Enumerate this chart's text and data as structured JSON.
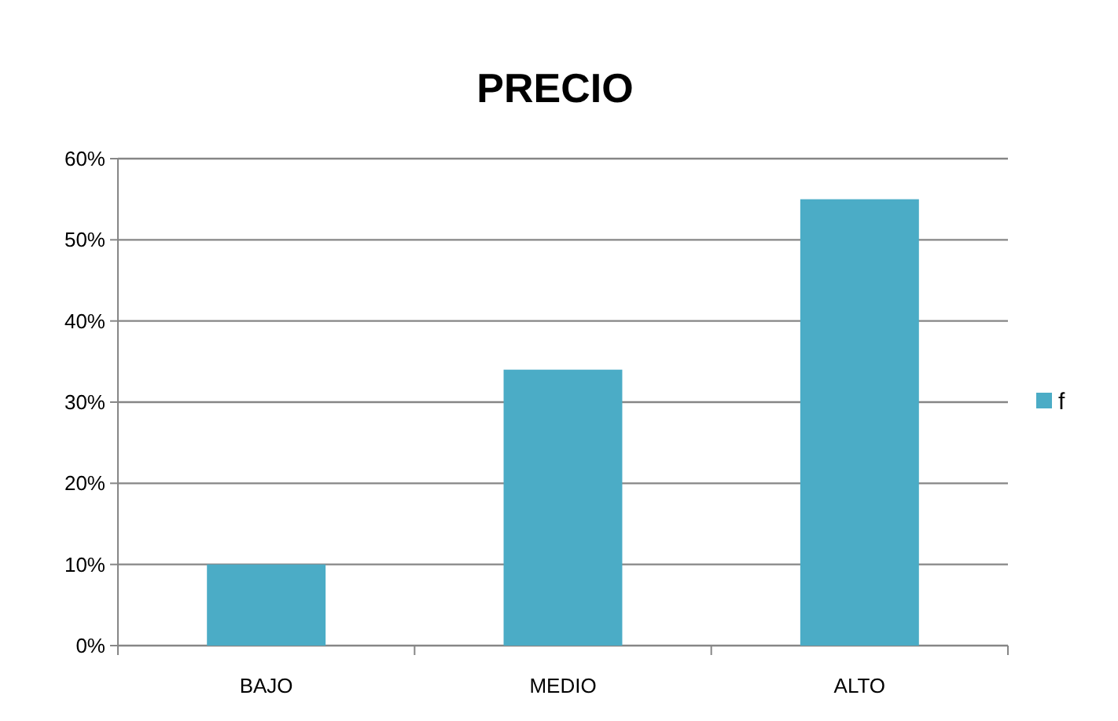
{
  "chart_data": {
    "type": "bar",
    "title": "PRECIO",
    "categories": [
      "BAJO",
      "MEDIO",
      "ALTO"
    ],
    "series": [
      {
        "name": "f",
        "color": "#4bacc6",
        "values": [
          10,
          34,
          55
        ]
      }
    ],
    "ylim": [
      0,
      60
    ],
    "yticks": [
      {
        "value": 0,
        "label": "0%"
      },
      {
        "value": 10,
        "label": "10%"
      },
      {
        "value": 20,
        "label": "20%"
      },
      {
        "value": 30,
        "label": "30%"
      },
      {
        "value": 40,
        "label": "40%"
      },
      {
        "value": 50,
        "label": "50%"
      },
      {
        "value": 60,
        "label": "60%"
      }
    ],
    "grid": "y",
    "legend": "right"
  }
}
